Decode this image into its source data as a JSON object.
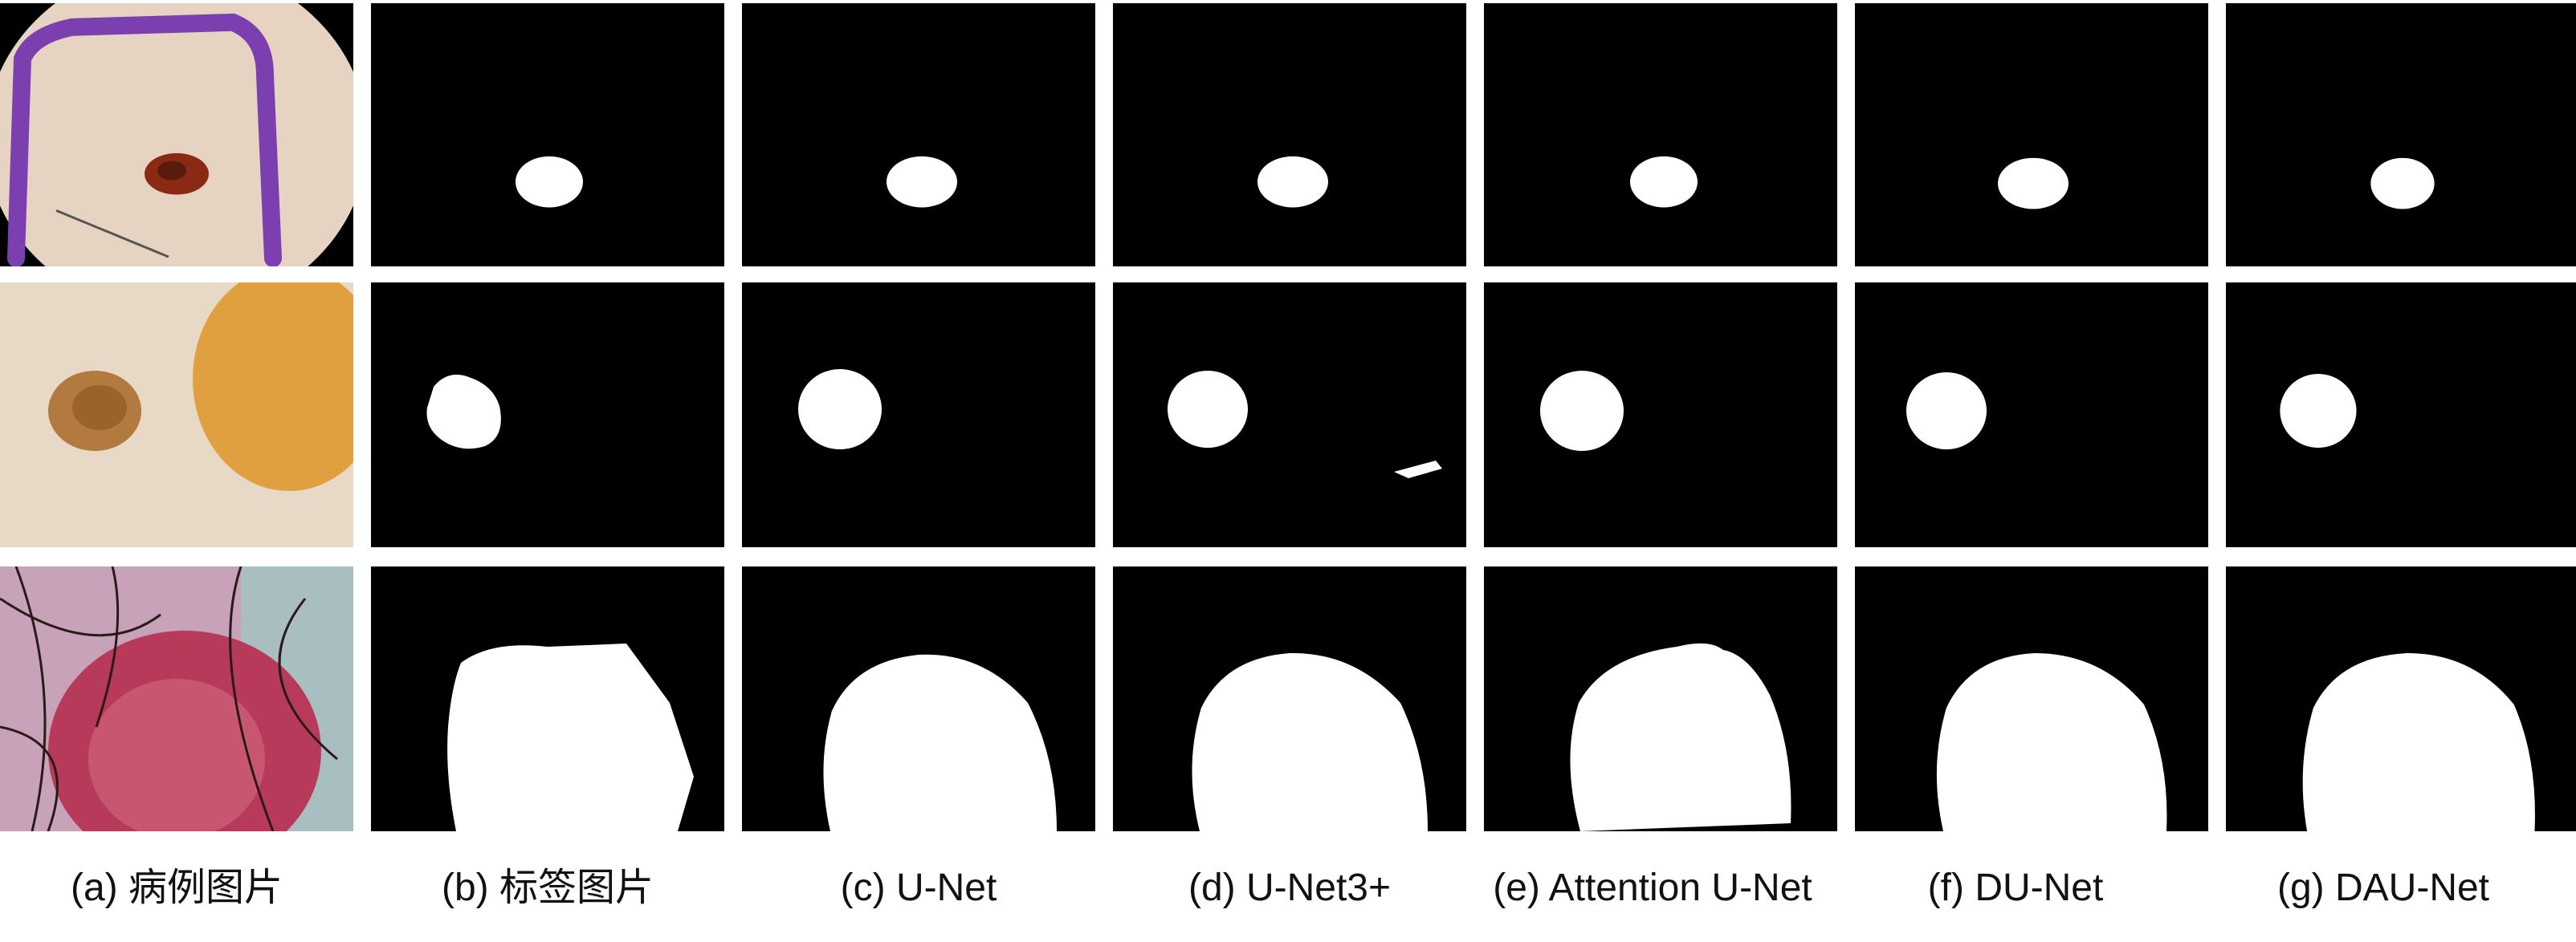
{
  "columns": [
    {
      "id": "a",
      "caption": "(a) 病例图片",
      "kind": "photo"
    },
    {
      "id": "b",
      "caption": "(b) 标签图片",
      "kind": "mask"
    },
    {
      "id": "c",
      "caption": "(c) U-Net",
      "kind": "mask"
    },
    {
      "id": "d",
      "caption": "(d) U-Net3+",
      "kind": "mask"
    },
    {
      "id": "e",
      "caption": "(e) Attention U-Net",
      "kind": "mask"
    },
    {
      "id": "f",
      "caption": "(f) DU-Net",
      "kind": "mask"
    },
    {
      "id": "g",
      "caption": "(g) DAU-Net",
      "kind": "mask"
    }
  ],
  "rows": [
    {
      "id": "case-1",
      "lesion": "small dark mole inside purple marker ring"
    },
    {
      "id": "case-2",
      "lesion": "light brown lesion beside orange patch"
    },
    {
      "id": "case-3",
      "lesion": "large red lesion with hair"
    }
  ],
  "colors": {
    "mask_background": "#000000",
    "mask_foreground": "#ffffff",
    "marker_purple": "#7b3fb0",
    "lesion_dark": "#8a2a14",
    "lesion_brown": "#b27a3e",
    "patch_orange": "#e0a040",
    "lesion_red": "#b83a5a"
  }
}
